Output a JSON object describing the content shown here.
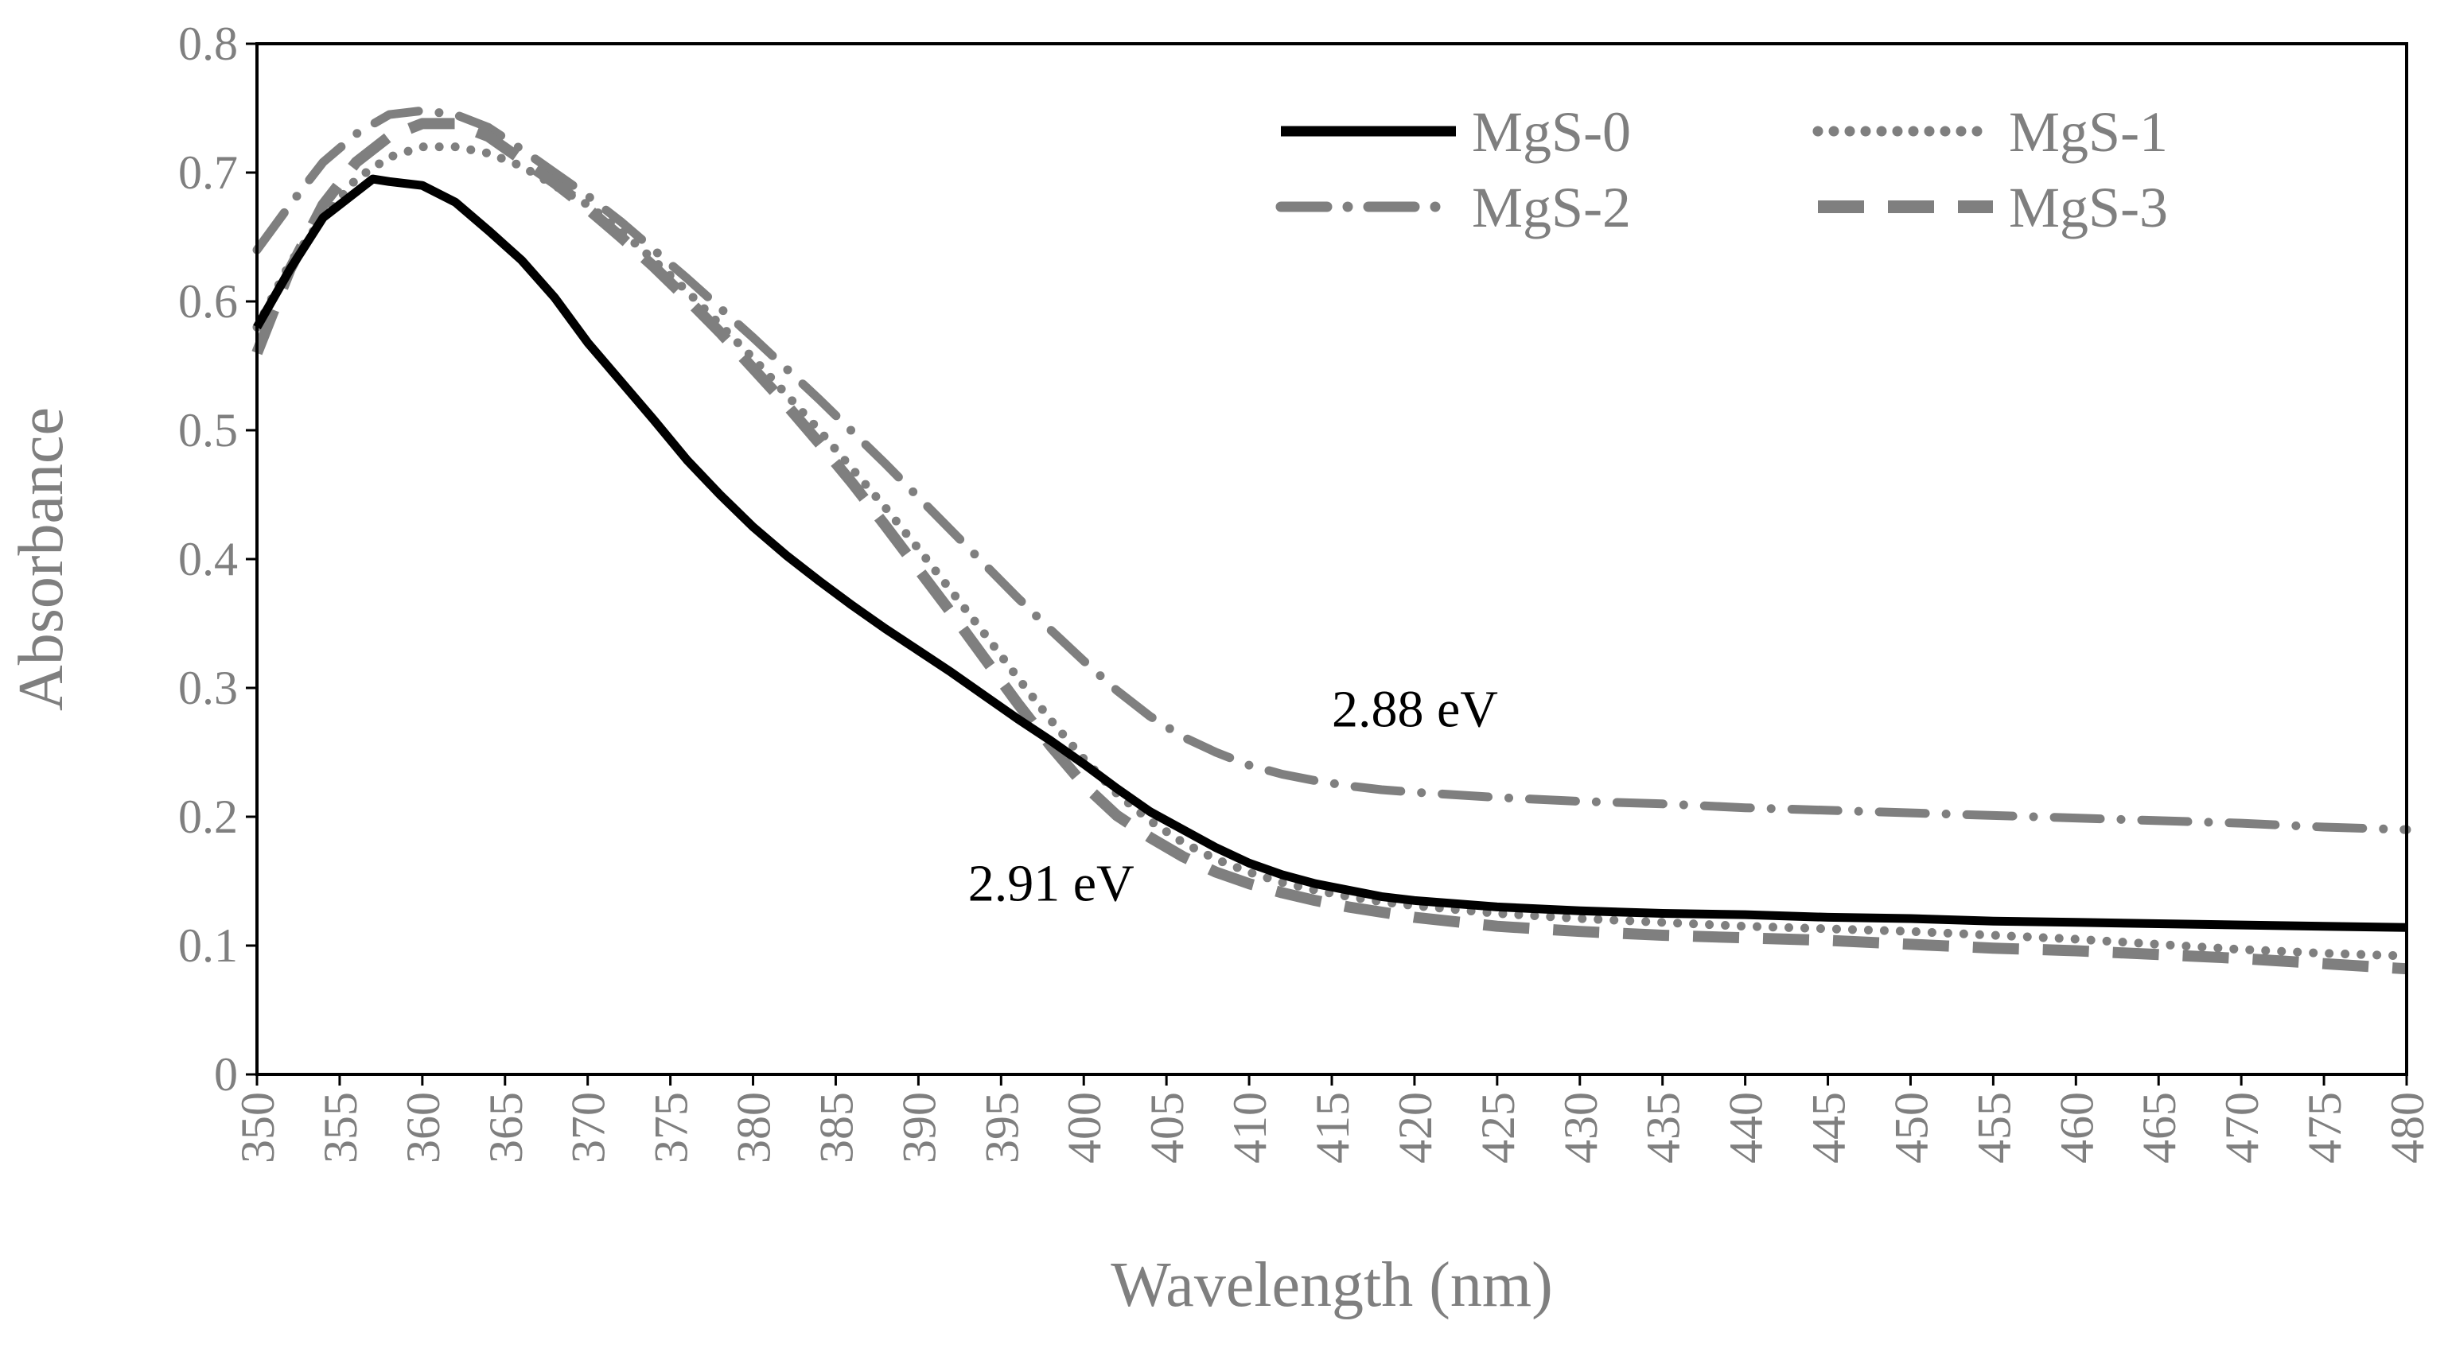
{
  "chart_data": {
    "type": "line",
    "title": "",
    "xlabel": "Wavelength (nm)",
    "ylabel": "Absorbance",
    "xlim": [
      350,
      480
    ],
    "ylim": [
      0,
      0.8
    ],
    "xticks": [
      350,
      355,
      360,
      365,
      370,
      375,
      380,
      385,
      390,
      395,
      400,
      405,
      410,
      415,
      420,
      425,
      430,
      435,
      440,
      445,
      450,
      455,
      460,
      465,
      470,
      475,
      480
    ],
    "yticks": [
      0,
      0.1,
      0.2,
      0.3,
      0.4,
      0.5,
      0.6,
      0.7,
      0.8
    ],
    "ytick_labels": [
      "0",
      "0.1",
      "0.2",
      "0.3",
      "0.4",
      "0.5",
      "0.6",
      "0.7",
      "0.8"
    ],
    "grid": false,
    "legend_position": "top-right",
    "series": [
      {
        "name": "MgS-0",
        "style": "solid",
        "color": "#000000",
        "x": [
          350,
          352,
          354,
          356,
          357,
          358,
          360,
          362,
          364,
          366,
          368,
          370,
          372,
          374,
          376,
          378,
          380,
          382,
          384,
          386,
          388,
          390,
          392,
          394,
          396,
          398,
          400,
          402,
          404,
          406,
          408,
          410,
          412,
          414,
          416,
          418,
          420,
          425,
          430,
          435,
          440,
          445,
          450,
          455,
          460,
          465,
          470,
          475,
          480
        ],
        "y": [
          0.58,
          0.625,
          0.665,
          0.685,
          0.695,
          0.693,
          0.69,
          0.677,
          0.655,
          0.632,
          0.603,
          0.568,
          0.538,
          0.508,
          0.477,
          0.45,
          0.425,
          0.403,
          0.383,
          0.364,
          0.346,
          0.329,
          0.312,
          0.294,
          0.276,
          0.259,
          0.241,
          0.222,
          0.204,
          0.19,
          0.176,
          0.164,
          0.155,
          0.148,
          0.143,
          0.138,
          0.135,
          0.13,
          0.127,
          0.125,
          0.124,
          0.122,
          0.121,
          0.119,
          0.118,
          0.117,
          0.116,
          0.115,
          0.114
        ]
      },
      {
        "name": "MgS-1",
        "style": "dotted",
        "color": "#7f7f7f",
        "x": [
          350,
          352,
          354,
          356,
          358,
          360,
          362,
          364,
          366,
          368,
          370,
          372,
          374,
          376,
          378,
          380,
          382,
          384,
          386,
          388,
          390,
          392,
          394,
          396,
          398,
          400,
          402,
          404,
          406,
          408,
          410,
          412,
          414,
          416,
          418,
          420,
          425,
          430,
          435,
          440,
          445,
          450,
          455,
          460,
          465,
          470,
          475,
          480
        ],
        "y": [
          0.58,
          0.63,
          0.665,
          0.695,
          0.712,
          0.72,
          0.72,
          0.715,
          0.705,
          0.69,
          0.675,
          0.655,
          0.632,
          0.608,
          0.582,
          0.556,
          0.528,
          0.5,
          0.47,
          0.44,
          0.408,
          0.375,
          0.342,
          0.308,
          0.275,
          0.245,
          0.218,
          0.197,
          0.18,
          0.167,
          0.157,
          0.149,
          0.143,
          0.138,
          0.134,
          0.131,
          0.125,
          0.121,
          0.118,
          0.115,
          0.113,
          0.111,
          0.108,
          0.105,
          0.101,
          0.097,
          0.094,
          0.092
        ]
      },
      {
        "name": "MgS-2",
        "style": "dash-dot",
        "color": "#7f7f7f",
        "x": [
          350,
          352,
          354,
          356,
          358,
          360,
          362,
          364,
          366,
          368,
          370,
          372,
          374,
          376,
          378,
          380,
          382,
          384,
          386,
          388,
          390,
          392,
          394,
          396,
          398,
          400,
          402,
          404,
          406,
          408,
          410,
          412,
          414,
          416,
          418,
          420,
          425,
          430,
          435,
          440,
          445,
          450,
          455,
          460,
          465,
          470,
          475,
          480
        ],
        "y": [
          0.64,
          0.675,
          0.708,
          0.73,
          0.745,
          0.748,
          0.745,
          0.735,
          0.718,
          0.7,
          0.682,
          0.662,
          0.64,
          0.618,
          0.595,
          0.572,
          0.548,
          0.524,
          0.499,
          0.474,
          0.448,
          0.422,
          0.396,
          0.37,
          0.345,
          0.321,
          0.298,
          0.278,
          0.262,
          0.25,
          0.24,
          0.233,
          0.228,
          0.224,
          0.221,
          0.219,
          0.215,
          0.212,
          0.21,
          0.207,
          0.205,
          0.203,
          0.201,
          0.199,
          0.197,
          0.195,
          0.192,
          0.19
        ]
      },
      {
        "name": "MgS-3",
        "style": "dashed",
        "color": "#7f7f7f",
        "x": [
          350,
          352,
          354,
          356,
          358,
          360,
          362,
          364,
          366,
          368,
          370,
          372,
          374,
          376,
          378,
          380,
          382,
          384,
          386,
          388,
          390,
          392,
          394,
          396,
          398,
          400,
          402,
          404,
          406,
          408,
          410,
          412,
          414,
          416,
          418,
          420,
          425,
          430,
          435,
          440,
          445,
          450,
          455,
          460,
          465,
          470,
          475,
          480
        ],
        "y": [
          0.56,
          0.625,
          0.675,
          0.708,
          0.728,
          0.738,
          0.738,
          0.728,
          0.71,
          0.692,
          0.672,
          0.65,
          0.627,
          0.602,
          0.576,
          0.548,
          0.52,
          0.49,
          0.459,
          0.426,
          0.392,
          0.358,
          0.323,
          0.288,
          0.255,
          0.225,
          0.201,
          0.184,
          0.169,
          0.157,
          0.148,
          0.141,
          0.135,
          0.13,
          0.126,
          0.122,
          0.115,
          0.111,
          0.108,
          0.106,
          0.104,
          0.101,
          0.098,
          0.096,
          0.093,
          0.09,
          0.086,
          0.082
        ]
      }
    ],
    "annotations": [
      {
        "text": "2.88 eV",
        "x": 415,
        "y": 0.27
      },
      {
        "text": "2.91 eV",
        "x": 393,
        "y": 0.135
      }
    ]
  }
}
